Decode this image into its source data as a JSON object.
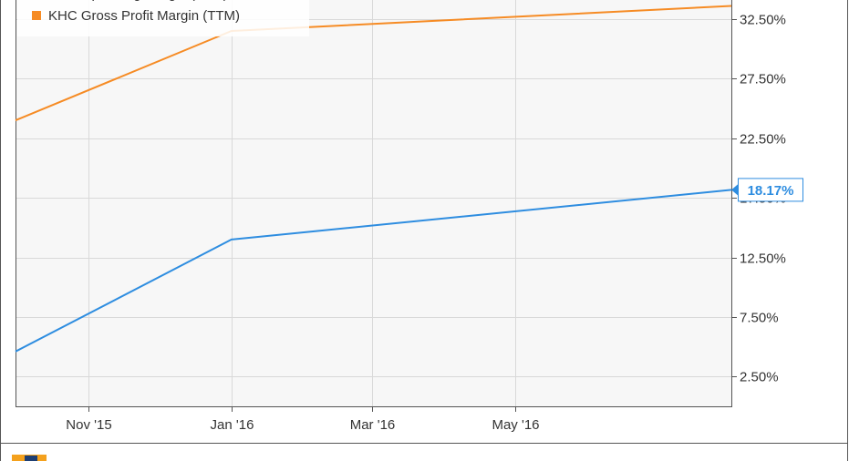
{
  "chart_data": {
    "type": "line",
    "x": [
      "2015-09-30",
      "2015-12-31",
      "2016-07-31"
    ],
    "series": [
      {
        "name": "KHC Operating Margin (TTM)",
        "values": [
          4.6,
          14.0,
          18.17
        ],
        "color": "#2e8de0"
      },
      {
        "name": "KHC Gross Profit Margin (TTM)",
        "values": [
          24.0,
          31.5,
          33.6
        ],
        "color": "#f68b24"
      }
    ],
    "current_value_label": "18.17%",
    "x_ticks": [
      {
        "date": "2015-10-31",
        "label": "Nov '15"
      },
      {
        "date": "2015-12-31",
        "label": "Jan '16"
      },
      {
        "date": "2016-02-29",
        "label": "Mar '16"
      },
      {
        "date": "2016-04-30",
        "label": "May '16"
      }
    ],
    "y_ticks": [
      {
        "value": 2.5,
        "label": "2.50%"
      },
      {
        "value": 7.5,
        "label": "7.50%"
      },
      {
        "value": 12.5,
        "label": "12.50%"
      },
      {
        "value": 17.5,
        "label": "17.50%"
      },
      {
        "value": 22.5,
        "label": "22.50%"
      },
      {
        "value": 27.5,
        "label": "27.50%"
      },
      {
        "value": 32.5,
        "label": "32.50%"
      }
    ],
    "ylim": [
      0,
      34.1
    ],
    "xlim": [
      "2015-09-30",
      "2016-07-31"
    ],
    "axis_position": "right",
    "grid": true,
    "legend_position": "top-left",
    "title": "",
    "xlabel": "",
    "ylabel": ""
  }
}
